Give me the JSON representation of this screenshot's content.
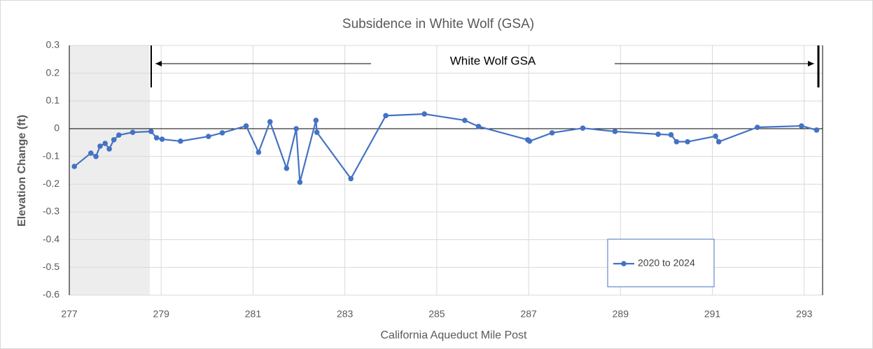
{
  "chart_data": {
    "type": "line",
    "title": "Subsidence in White Wolf (GSA)",
    "xlabel": "California Aqueduct Mile Post",
    "ylabel": "Elevation Change (ft)",
    "annotation": "White Wolf GSA",
    "xlim": [
      277,
      293.4
    ],
    "xticks": [
      277,
      279,
      281,
      283,
      285,
      287,
      289,
      291,
      293
    ],
    "ylim": [
      -0.6,
      0.3
    ],
    "yticks": [
      -0.6,
      -0.5,
      -0.4,
      -0.3,
      -0.2,
      -0.1,
      0,
      0.1,
      0.2,
      0.3
    ],
    "grid": true,
    "series": [
      {
        "name": "2020 to 2024",
        "color": "#4472c4",
        "x": [
          277.11,
          277.47,
          277.58,
          277.67,
          277.78,
          277.87,
          277.97,
          278.08,
          278.38,
          278.78,
          278.9,
          279.02,
          279.42,
          280.03,
          280.33,
          280.85,
          281.12,
          281.37,
          281.73,
          281.94,
          282.02,
          282.37,
          282.39,
          283.13,
          283.89,
          284.73,
          285.61,
          285.91,
          286.98,
          287.02,
          287.51,
          288.18,
          288.88,
          289.82,
          290.1,
          290.22,
          290.46,
          291.07,
          291.14,
          291.98,
          292.94,
          293.27
        ],
        "values": [
          -0.136,
          -0.088,
          -0.1,
          -0.063,
          -0.053,
          -0.073,
          -0.04,
          -0.023,
          -0.013,
          -0.01,
          -0.033,
          -0.038,
          -0.045,
          -0.028,
          -0.015,
          0.01,
          -0.085,
          0.025,
          -0.143,
          0,
          -0.193,
          0.03,
          -0.013,
          -0.18,
          0.047,
          0.053,
          0.03,
          0.008,
          -0.04,
          -0.045,
          -0.015,
          0.002,
          -0.01,
          -0.02,
          -0.022,
          -0.047,
          -0.047,
          -0.027,
          -0.047,
          0.005,
          0.01,
          -0.005
        ]
      }
    ]
  }
}
